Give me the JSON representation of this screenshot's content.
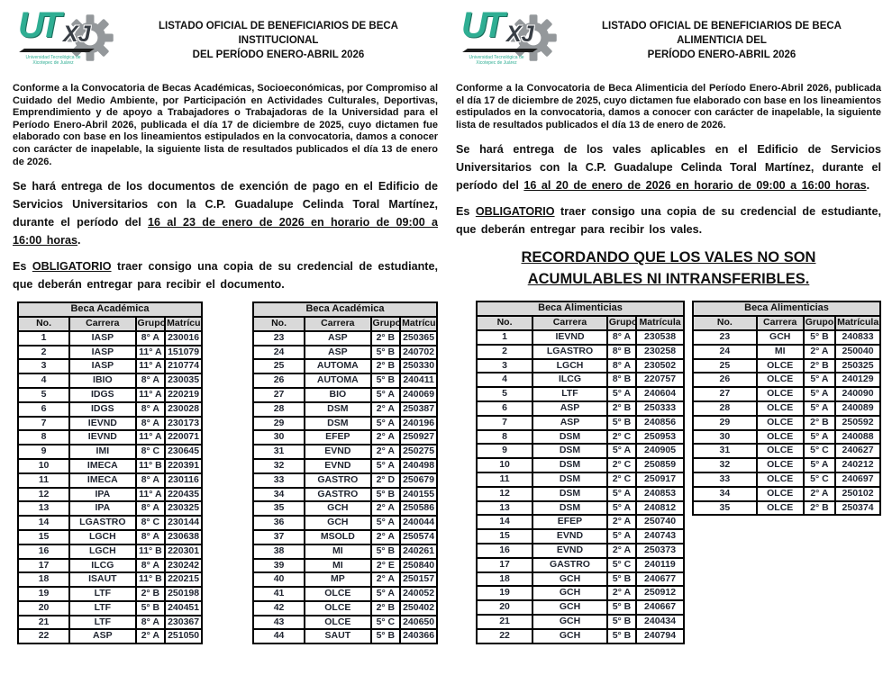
{
  "logo": {
    "ut": "UT",
    "xj": "XJ",
    "caption_line1": "Universidad Tecnológica de",
    "caption_line2": "Xicotepec de Juárez"
  },
  "colors": {
    "teal": "#2fae93",
    "gear_gray": "#94989b",
    "table_header_bg": "#d9d9d9",
    "text": "#111111"
  },
  "left_page": {
    "title_line1": "LISTADO OFICIAL DE BENEFICIARIOS DE BECA INSTITUCIONAL",
    "title_line2": "DEL PERÍODO ENERO-ABRIL 2026",
    "p1": "Conforme a la Convocatoria de Becas Académicas, Socioeconómicas, por Compromiso al Cuidado del Medio Ambiente, por Participación en Actividades Culturales, Deportivas, Emprendimiento y de apoyo a Trabajadores o Trabajadoras de la Universidad para el Período Enero-Abril 2026, publicada el día 17 de diciembre de 2025, cuyo dictamen fue elaborado con base en los lineamientos estipulados en la convocatoria, damos a conocer con carácter de inapelable, la siguiente lista de resultados publicados el día 13 de enero de 2026.",
    "p2_start": "Se hará entrega de los documentos de exención de pago en el Edificio de Servicios Universitarios con la C.P. Guadalupe Celinda Toral Martínez, durante el período del ",
    "p2_underline": "16 al 23 de enero de 2026 en horario de 09:00 a 16:00 horas",
    "p2_end": ".",
    "p3_start": "Es ",
    "p3_underline": "OBLIGATORIO",
    "p3_end": " traer consigo una copia de su credencial de estudiante, que deberán entregar para recibir el documento.",
    "table1": {
      "title": "Beca Académica",
      "headers": [
        "No.",
        "Carrera",
        "Grupo",
        "Matrícula"
      ],
      "rows": [
        [
          "1",
          "IASP",
          "8° A",
          "230016"
        ],
        [
          "2",
          "IASP",
          "11° A",
          "151079"
        ],
        [
          "3",
          "IASP",
          "11° A",
          "210774"
        ],
        [
          "4",
          "IBIO",
          "8° A",
          "230035"
        ],
        [
          "5",
          "IDGS",
          "11° A",
          "220219"
        ],
        [
          "6",
          "IDGS",
          "8° A",
          "230028"
        ],
        [
          "7",
          "IEVND",
          "8° A",
          "230173"
        ],
        [
          "8",
          "IEVND",
          "11° A",
          "220071"
        ],
        [
          "9",
          "IMI",
          "8° C",
          "230645"
        ],
        [
          "10",
          "IMECA",
          "11° B",
          "220391"
        ],
        [
          "11",
          "IMECA",
          "8° A",
          "230116"
        ],
        [
          "12",
          "IPA",
          "11° A",
          "220435"
        ],
        [
          "13",
          "IPA",
          "8° A",
          "230325"
        ],
        [
          "14",
          "LGASTRO",
          "8° C",
          "230144"
        ],
        [
          "15",
          "LGCH",
          "8° A",
          "230638"
        ],
        [
          "16",
          "LGCH",
          "11° B",
          "220301"
        ],
        [
          "17",
          "ILCG",
          "8° A",
          "230242"
        ],
        [
          "18",
          "ISAUT",
          "11° B",
          "220215"
        ],
        [
          "19",
          "LTF",
          "2° B",
          "250198"
        ],
        [
          "20",
          "LTF",
          "5° B",
          "240451"
        ],
        [
          "21",
          "LTF",
          "8° A",
          "230367"
        ],
        [
          "22",
          "ASP",
          "2° A",
          "251050"
        ]
      ]
    },
    "table2": {
      "title": "Beca Académica",
      "headers": [
        "No.",
        "Carrera",
        "Grupo",
        "Matrícula"
      ],
      "rows": [
        [
          "23",
          "ASP",
          "2° B",
          "250365"
        ],
        [
          "24",
          "ASP",
          "5° B",
          "240702"
        ],
        [
          "25",
          "AUTOMA",
          "2° B",
          "250330"
        ],
        [
          "26",
          "AUTOMA",
          "5° B",
          "240411"
        ],
        [
          "27",
          "BIO",
          "5° A",
          "240069"
        ],
        [
          "28",
          "DSM",
          "2° A",
          "250387"
        ],
        [
          "29",
          "DSM",
          "5° A",
          "240196"
        ],
        [
          "30",
          "EFEP",
          "2° A",
          "250927"
        ],
        [
          "31",
          "EVND",
          "2° A",
          "250275"
        ],
        [
          "32",
          "EVND",
          "5° A",
          "240498"
        ],
        [
          "33",
          "GASTRO",
          "2° D",
          "250679"
        ],
        [
          "34",
          "GASTRO",
          "5° B",
          "240155"
        ],
        [
          "35",
          "GCH",
          "2° A",
          "250586"
        ],
        [
          "36",
          "GCH",
          "5° A",
          "240044"
        ],
        [
          "37",
          "MSOLD",
          "2° A",
          "250574"
        ],
        [
          "38",
          "MI",
          "5° B",
          "240261"
        ],
        [
          "39",
          "MI",
          "2° E",
          "250840"
        ],
        [
          "40",
          "MP",
          "2° A",
          "250157"
        ],
        [
          "41",
          "OLCE",
          "5° A",
          "240052"
        ],
        [
          "42",
          "OLCE",
          "2° B",
          "250402"
        ],
        [
          "43",
          "OLCE",
          "5° C",
          "240650"
        ],
        [
          "44",
          "SAUT",
          "5° B",
          "240366"
        ]
      ]
    }
  },
  "right_page": {
    "title_line1": "LISTADO OFICIAL DE BENEFICIARIOS DE BECA ALIMENTICIA DEL",
    "title_line2": "PERÍODO ENERO-ABRIL 2026",
    "p1": "Conforme a la Convocatoria de Beca Alimenticia del Período Enero-Abril 2026, publicada el día 17 de diciembre de 2025, cuyo dictamen fue elaborado con base en los lineamientos estipulados en la convocatoria, damos a conocer con carácter de inapelable, la siguiente lista de resultados publicados el día 13 de enero de 2026.",
    "p2_start": "Se hará entrega de los vales aplicables en el Edificio de Servicios Universitarios con la C.P. Guadalupe Celinda Toral Martínez, durante el período del ",
    "p2_underline": "16 al 20 de enero de 2026 en horario de 09:00 a 16:00 horas",
    "p2_end": ".",
    "p3_start": "Es ",
    "p3_underline": "OBLIGATORIO",
    "p3_end": " traer consigo una copia de su credencial de estudiante, que deberán entregar para recibir los vales.",
    "heading": "RECORDANDO QUE LOS VALES NO SON ACUMULABLES NI INTRANSFERIBLES.",
    "table1": {
      "title": "Beca Alimenticias",
      "headers": [
        "No.",
        "Carrera",
        "Grupo",
        "Matrícula"
      ],
      "rows": [
        [
          "1",
          "IEVND",
          "8° A",
          "230538"
        ],
        [
          "2",
          "LGASTRO",
          "8° B",
          "230258"
        ],
        [
          "3",
          "LGCH",
          "8° A",
          "230502"
        ],
        [
          "4",
          "ILCG",
          "8° B",
          "220757"
        ],
        [
          "5",
          "LTF",
          "5° A",
          "240604"
        ],
        [
          "6",
          "ASP",
          "2° B",
          "250333"
        ],
        [
          "7",
          "ASP",
          "5° B",
          "240856"
        ],
        [
          "8",
          "DSM",
          "2° C",
          "250953"
        ],
        [
          "9",
          "DSM",
          "5° A",
          "240905"
        ],
        [
          "10",
          "DSM",
          "2° C",
          "250859"
        ],
        [
          "11",
          "DSM",
          "2° C",
          "250917"
        ],
        [
          "12",
          "DSM",
          "5° A",
          "240853"
        ],
        [
          "13",
          "DSM",
          "5° A",
          "240812"
        ],
        [
          "14",
          "EFEP",
          "2° A",
          "250740"
        ],
        [
          "15",
          "EVND",
          "5° A",
          "240743"
        ],
        [
          "16",
          "EVND",
          "2° A",
          "250373"
        ],
        [
          "17",
          "GASTRO",
          "5° C",
          "240119"
        ],
        [
          "18",
          "GCH",
          "5° B",
          "240677"
        ],
        [
          "19",
          "GCH",
          "2° A",
          "250912"
        ],
        [
          "20",
          "GCH",
          "5° B",
          "240667"
        ],
        [
          "21",
          "GCH",
          "5° B",
          "240434"
        ],
        [
          "22",
          "GCH",
          "5° B",
          "240794"
        ]
      ]
    },
    "table2": {
      "title": "Beca Alimenticias",
      "headers": [
        "No.",
        "Carrera",
        "Grupo",
        "Matrícula"
      ],
      "rows": [
        [
          "23",
          "GCH",
          "5° B",
          "240833"
        ],
        [
          "24",
          "MI",
          "2° A",
          "250040"
        ],
        [
          "25",
          "OLCE",
          "2° B",
          "250325"
        ],
        [
          "26",
          "OLCE",
          "5° A",
          "240129"
        ],
        [
          "27",
          "OLCE",
          "5° A",
          "240090"
        ],
        [
          "28",
          "OLCE",
          "5° A",
          "240089"
        ],
        [
          "29",
          "OLCE",
          "2° B",
          "250592"
        ],
        [
          "30",
          "OLCE",
          "5° A",
          "240088"
        ],
        [
          "31",
          "OLCE",
          "5° C",
          "240627"
        ],
        [
          "32",
          "OLCE",
          "5° A",
          "240212"
        ],
        [
          "33",
          "OLCE",
          "5° C",
          "240697"
        ],
        [
          "34",
          "OLCE",
          "2° A",
          "250102"
        ],
        [
          "35",
          "OLCE",
          "2° B",
          "250374"
        ]
      ]
    }
  }
}
